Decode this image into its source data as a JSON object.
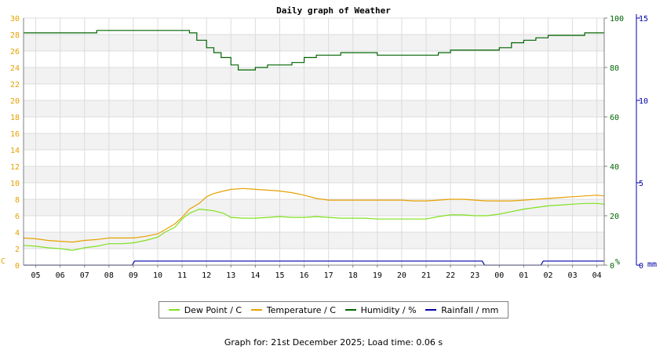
{
  "chart_data": {
    "type": "line",
    "title": "Daily graph of Weather",
    "x_tick_labels": [
      "05",
      "06",
      "07",
      "08",
      "09",
      "10",
      "11",
      "12",
      "13",
      "14",
      "15",
      "16",
      "17",
      "18",
      "19",
      "20",
      "21",
      "22",
      "23",
      "00",
      "01",
      "02",
      "03",
      "04"
    ],
    "left_axis": {
      "unit": "C",
      "ylim": [
        0,
        30
      ],
      "ticks": [
        0,
        2,
        4,
        6,
        8,
        10,
        12,
        14,
        16,
        18,
        20,
        22,
        24,
        26,
        28,
        30
      ],
      "color": "#e6a100"
    },
    "right_axis_1": {
      "unit": "%",
      "ylim": [
        0,
        100
      ],
      "ticks": [
        0,
        20,
        40,
        60,
        80,
        100
      ],
      "color": "#006400"
    },
    "right_axis_2": {
      "unit": "mm",
      "ylim": [
        0,
        15
      ],
      "ticks": [
        0,
        5,
        10,
        15
      ],
      "color": "#0000aa"
    },
    "grid": true,
    "series": [
      {
        "name": "Dew Point / C",
        "axis": "left",
        "color": "#80e020",
        "x": [
          4.5,
          5,
          5.5,
          6,
          6.5,
          7,
          7.5,
          8,
          8.5,
          9,
          9.5,
          10,
          10.3,
          10.7,
          11,
          11.3,
          11.7,
          12,
          12.3,
          12.7,
          13,
          13.5,
          14,
          14.5,
          15,
          15.5,
          16,
          16.5,
          17,
          17.5,
          18,
          18.5,
          19,
          19.5,
          20,
          20.5,
          21,
          21.5,
          22,
          22.5,
          23,
          23.5,
          24,
          24.5,
          25,
          25.5,
          26,
          26.5,
          27,
          27.5,
          28,
          28.3
        ],
        "y": [
          2.4,
          2.3,
          2.1,
          2.0,
          1.8,
          2.1,
          2.3,
          2.6,
          2.6,
          2.7,
          3.0,
          3.4,
          4.0,
          4.6,
          5.6,
          6.3,
          6.8,
          6.7,
          6.6,
          6.3,
          5.8,
          5.7,
          5.7,
          5.8,
          5.9,
          5.8,
          5.8,
          5.9,
          5.8,
          5.7,
          5.7,
          5.7,
          5.6,
          5.6,
          5.6,
          5.6,
          5.6,
          5.9,
          6.1,
          6.1,
          6.0,
          6.0,
          6.2,
          6.5,
          6.8,
          7.0,
          7.2,
          7.3,
          7.4,
          7.5,
          7.5,
          7.4
        ]
      },
      {
        "name": "Temperature / C",
        "axis": "left",
        "color": "#e6a100",
        "x": [
          4.5,
          5,
          5.5,
          6,
          6.5,
          7,
          7.5,
          8,
          8.5,
          9,
          9.5,
          10,
          10.3,
          10.7,
          11,
          11.3,
          11.7,
          12,
          12.3,
          12.7,
          13,
          13.5,
          14,
          14.5,
          15,
          15.5,
          16,
          16.5,
          17,
          17.5,
          18,
          18.5,
          19,
          19.5,
          20,
          20.5,
          21,
          21.5,
          22,
          22.5,
          23,
          23.5,
          24,
          24.5,
          25,
          25.5,
          26,
          26.5,
          27,
          27.5,
          28,
          28.3
        ],
        "y": [
          3.3,
          3.2,
          3.0,
          2.9,
          2.8,
          3.0,
          3.1,
          3.3,
          3.3,
          3.3,
          3.5,
          3.8,
          4.3,
          5.0,
          5.8,
          6.8,
          7.5,
          8.3,
          8.7,
          9.0,
          9.2,
          9.3,
          9.2,
          9.1,
          9.0,
          8.8,
          8.5,
          8.1,
          7.9,
          7.9,
          7.9,
          7.9,
          7.9,
          7.9,
          7.9,
          7.8,
          7.8,
          7.9,
          8.0,
          8.0,
          7.9,
          7.8,
          7.8,
          7.8,
          7.9,
          8.0,
          8.1,
          8.2,
          8.3,
          8.4,
          8.5,
          8.4
        ]
      },
      {
        "name": "Humidity / %",
        "axis": "right1",
        "color": "#006400",
        "x": [
          4.5,
          5,
          5.5,
          6,
          6.5,
          7,
          7.5,
          8,
          8.5,
          9,
          9.5,
          10,
          10.5,
          11,
          11.3,
          11.6,
          12,
          12.3,
          12.6,
          13,
          13.3,
          13.6,
          14,
          14.5,
          15,
          15.5,
          16,
          16.5,
          17,
          17.5,
          18,
          18.5,
          19,
          19.5,
          20,
          20.5,
          21,
          21.5,
          22,
          22.5,
          23,
          23.5,
          24,
          24.5,
          25,
          25.5,
          26,
          26.5,
          27,
          27.5,
          28,
          28.3
        ],
        "y": [
          94,
          94,
          94,
          94,
          94,
          94,
          95,
          95,
          95,
          95,
          95,
          95,
          95,
          95,
          94,
          91,
          88,
          86,
          84,
          81,
          79,
          79,
          80,
          81,
          81,
          82,
          84,
          85,
          85,
          86,
          86,
          86,
          85,
          85,
          85,
          85,
          85,
          86,
          87,
          87,
          87,
          87,
          88,
          90,
          91,
          92,
          93,
          93,
          93,
          94,
          94,
          94
        ]
      },
      {
        "name": "Rainfall / mm",
        "axis": "right2",
        "color": "#0000aa",
        "x": [
          4.5,
          8.95,
          9.05,
          23.3,
          23.4,
          25.7,
          25.8,
          28.3
        ],
        "y": [
          0,
          0,
          0.25,
          0.25,
          0,
          0,
          0.25,
          0.25
        ]
      }
    ]
  },
  "footer": {
    "text": "Graph for: 21st December 2025; Load time: 0.06 s"
  }
}
